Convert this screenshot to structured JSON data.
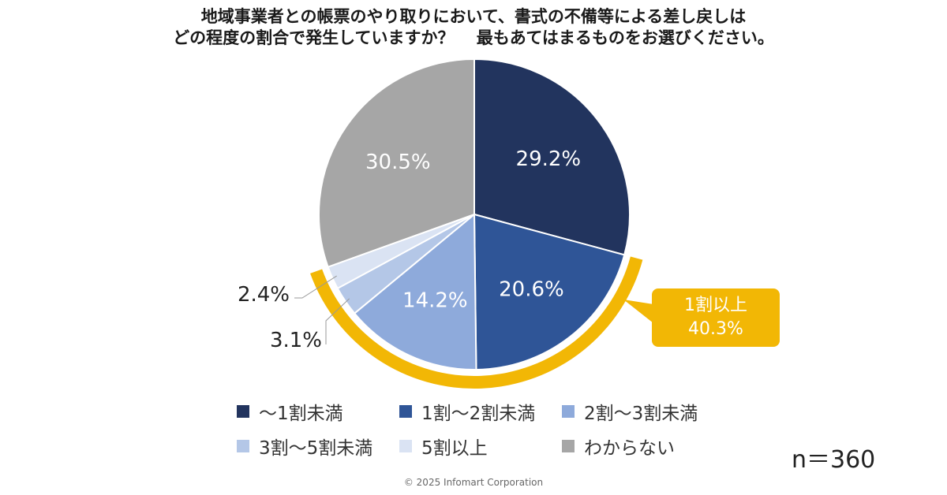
{
  "chart_data": {
    "type": "pie",
    "title_lines": [
      "地域事業者との帳票のやり取りにおいて、書式の不備等による差し戻しは",
      "どの程度の割合で発生していますか？　 最もあてはまるものをお選びください。"
    ],
    "slices": [
      {
        "name": "〜1割未満",
        "value": 29.2,
        "label": "29.2%",
        "color": "#22345e"
      },
      {
        "name": "1割〜2割未満",
        "value": 20.6,
        "label": "20.6%",
        "color": "#2f5597"
      },
      {
        "name": "2割〜3割未満",
        "value": 14.2,
        "label": "14.2%",
        "color": "#8eaadb"
      },
      {
        "name": "3割〜5割未満",
        "value": 3.1,
        "label": "3.1%",
        "color": "#b4c7e7"
      },
      {
        "name": "5割以上",
        "value": 2.4,
        "label": "2.4%",
        "color": "#dae3f3"
      },
      {
        "name": "わからない",
        "value": 30.5,
        "label": "30.5%",
        "color": "#a6a6a6"
      }
    ],
    "highlight": {
      "line1": "1割以上",
      "line2": "40.3%",
      "color": "#f2b705"
    },
    "n_label": "n＝360"
  },
  "footer": {
    "copyright": "© 2025 Infomart Corporation"
  }
}
